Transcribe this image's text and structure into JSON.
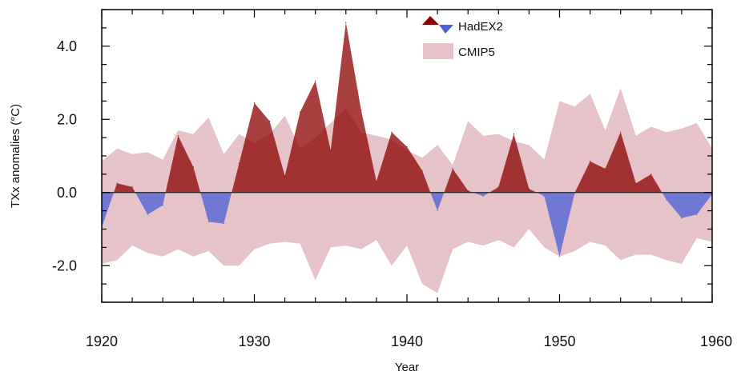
{
  "chart_data": {
    "type": "area",
    "xlabel": "Year",
    "ylabel": "TXx anomalies (°C)",
    "xlim": [
      1920,
      1960
    ],
    "ylim": [
      -3.0,
      5.0
    ],
    "xticks": [
      1920,
      1930,
      1940,
      1950,
      1960
    ],
    "xtick_labels": [
      "1920",
      "1930",
      "1940",
      "1950",
      "1960"
    ],
    "yticks": [
      -2.0,
      0.0,
      2.0,
      4.0
    ],
    "ytick_labels": [
      "-2.0",
      "0.0",
      "2.0",
      "4.0"
    ],
    "legend_position": "top-center",
    "grid": false,
    "series": [
      {
        "name": "HadEX2",
        "kind": "anomaly-fill",
        "positive_color": "#8b0000",
        "negative_color": "#4a5fd8",
        "x": [
          1920,
          1921,
          1922,
          1923,
          1924,
          1925,
          1926,
          1927,
          1928,
          1929,
          1930,
          1931,
          1932,
          1933,
          1934,
          1935,
          1936,
          1937,
          1938,
          1939,
          1940,
          1941,
          1942,
          1943,
          1944,
          1945,
          1946,
          1947,
          1948,
          1949,
          1950,
          1951,
          1952,
          1953,
          1954,
          1955,
          1956,
          1957,
          1958,
          1959,
          1960
        ],
        "values": [
          -0.95,
          0.25,
          0.15,
          -0.6,
          -0.35,
          1.55,
          0.7,
          -0.8,
          -0.85,
          0.8,
          2.45,
          1.95,
          0.45,
          2.2,
          3.05,
          1.15,
          4.65,
          2.25,
          0.3,
          1.65,
          1.25,
          0.6,
          -0.5,
          0.65,
          0.05,
          -0.1,
          0.15,
          1.6,
          0.1,
          -0.1,
          -1.75,
          0.0,
          0.85,
          0.65,
          1.65,
          0.25,
          0.5,
          -0.2,
          -0.7,
          -0.6,
          -0.05
        ]
      },
      {
        "name": "CMIP5",
        "kind": "range-band",
        "color": "#e6c3c8",
        "x": [
          1920,
          1921,
          1922,
          1923,
          1924,
          1925,
          1926,
          1927,
          1928,
          1929,
          1930,
          1931,
          1932,
          1933,
          1934,
          1935,
          1936,
          1937,
          1938,
          1939,
          1940,
          1941,
          1942,
          1943,
          1944,
          1945,
          1946,
          1947,
          1948,
          1949,
          1950,
          1951,
          1952,
          1953,
          1954,
          1955,
          1956,
          1957,
          1958,
          1959,
          1960
        ],
        "upper": [
          0.85,
          1.2,
          1.05,
          1.1,
          0.9,
          1.7,
          1.6,
          2.05,
          1.05,
          1.6,
          1.35,
          1.6,
          2.1,
          1.2,
          1.5,
          1.9,
          2.3,
          1.65,
          1.55,
          1.45,
          1.15,
          0.95,
          1.3,
          0.75,
          1.95,
          1.55,
          1.6,
          1.4,
          1.3,
          0.9,
          2.5,
          2.35,
          2.7,
          1.7,
          2.85,
          1.55,
          1.8,
          1.65,
          1.75,
          1.9,
          1.2
        ],
        "lower": [
          -1.95,
          -1.85,
          -1.45,
          -1.65,
          -1.75,
          -1.55,
          -1.75,
          -1.6,
          -2.0,
          -2.0,
          -1.55,
          -1.4,
          -1.35,
          -1.4,
          -2.4,
          -1.5,
          -1.45,
          -1.55,
          -1.3,
          -2.0,
          -1.45,
          -2.5,
          -2.75,
          -1.55,
          -1.35,
          -1.45,
          -1.3,
          -1.5,
          -1.0,
          -1.5,
          -1.75,
          -1.6,
          -1.35,
          -1.45,
          -1.85,
          -1.7,
          -1.7,
          -1.85,
          -1.95,
          -1.25,
          -1.35
        ]
      }
    ]
  }
}
